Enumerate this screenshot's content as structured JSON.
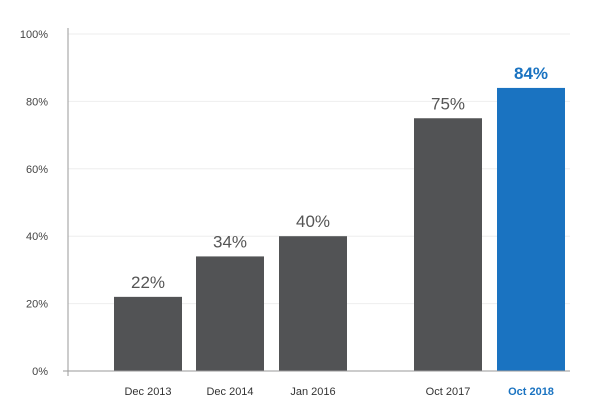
{
  "colors": {
    "bar": "#525355",
    "highlight": "#1a73c1",
    "grid": "#eeeeee",
    "axis": "#9a9a9a"
  },
  "chart_data": {
    "type": "bar",
    "title": "",
    "xlabel": "",
    "ylabel": "",
    "ylim": [
      0,
      100
    ],
    "y_ticks": [
      "0%",
      "20%",
      "40%",
      "60%",
      "80%",
      "100%"
    ],
    "y_tick_values": [
      0,
      20,
      40,
      60,
      80,
      100
    ],
    "grid": true,
    "categories": [
      "Dec 2013",
      "Dec 2014",
      "Jan 2016",
      "Oct 2017",
      "Oct 2018"
    ],
    "values": [
      22,
      34,
      40,
      75,
      84
    ],
    "data_labels": [
      "22%",
      "34%",
      "40%",
      "75%",
      "84%"
    ],
    "highlighted": [
      false,
      false,
      false,
      false,
      true
    ]
  }
}
